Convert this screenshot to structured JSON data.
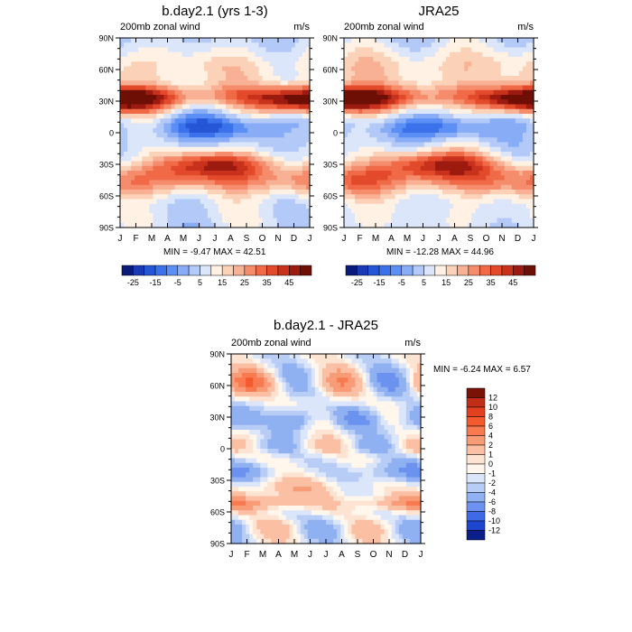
{
  "months": [
    "J",
    "F",
    "M",
    "A",
    "M",
    "J",
    "J",
    "A",
    "S",
    "O",
    "N",
    "D",
    "J"
  ],
  "lat_ticks": [
    "90N",
    "60N",
    "30N",
    "0",
    "30S",
    "60S",
    "90S"
  ],
  "panels": {
    "p1": {
      "title": "b.day2.1 (yrs 1-3)",
      "subtitle": "200mb zonal wind",
      "units": "m/s",
      "minmax": "MIN =  -9.47 MAX =  42.51"
    },
    "p2": {
      "title": "JRA25",
      "subtitle": "200mb zonal wind",
      "units": "m/s",
      "minmax": "MIN = -12.28 MAX = 44.96"
    },
    "p3": {
      "title": "b.day2.1 - JRA25",
      "subtitle": "200mb zonal wind",
      "units": "m/s",
      "minmax": "MIN =  -6.24 MAX =   6.57"
    }
  },
  "colorbar_main": {
    "labels": [
      "-25",
      "-15",
      "-5",
      "5",
      "15",
      "25",
      "35",
      "45"
    ],
    "colors": [
      "#0a1a7a",
      "#1a3ab5",
      "#2456d6",
      "#3b72ec",
      "#5b8ff5",
      "#88acf5",
      "#b3c9f7",
      "#dce6fb",
      "#fff1e3",
      "#fbd2b8",
      "#f8b194",
      "#f58d6c",
      "#f06a48",
      "#e34a2b",
      "#c8321c",
      "#9c1a0f",
      "#6e0f06"
    ]
  },
  "colorbar_diff": {
    "labels": [
      "12",
      "10",
      "8",
      "6",
      "4",
      "2",
      "1",
      "0",
      "-1",
      "-2",
      "-4",
      "-6",
      "-8",
      "-10",
      "-12"
    ],
    "colors": [
      "#7a1208",
      "#c22d18",
      "#e2401e",
      "#f55a2e",
      "#f77a50",
      "#f89c78",
      "#fbbfa3",
      "#fde3d2",
      "#fff6ec",
      "#dce6fb",
      "#b8cdf6",
      "#8fb0f1",
      "#6a92ee",
      "#3f6ae6",
      "#1f45cf",
      "#0b1f8a"
    ]
  },
  "chart_data": [
    {
      "type": "heatmap",
      "title": "b.day2.1 (yrs 1-3)",
      "subtitle": "200mb zonal wind",
      "units": "m/s",
      "x": [
        "J",
        "F",
        "M",
        "A",
        "M",
        "J",
        "J",
        "A",
        "S",
        "O",
        "N",
        "D",
        "J"
      ],
      "y": [
        "90N",
        "60N",
        "30N",
        "0",
        "30S",
        "60S",
        "90S"
      ],
      "min": -9.47,
      "max": 42.51,
      "colorbar_ticks": [
        -25,
        -15,
        -5,
        5,
        15,
        25,
        35,
        45
      ]
    },
    {
      "type": "heatmap",
      "title": "JRA25",
      "subtitle": "200mb zonal wind",
      "units": "m/s",
      "x": [
        "J",
        "F",
        "M",
        "A",
        "M",
        "J",
        "J",
        "A",
        "S",
        "O",
        "N",
        "D",
        "J"
      ],
      "y": [
        "90N",
        "60N",
        "30N",
        "0",
        "30S",
        "60S",
        "90S"
      ],
      "min": -12.28,
      "max": 44.96,
      "colorbar_ticks": [
        -25,
        -15,
        -5,
        5,
        15,
        25,
        35,
        45
      ]
    },
    {
      "type": "heatmap",
      "title": "b.day2.1 - JRA25",
      "subtitle": "200mb zonal wind",
      "units": "m/s",
      "x": [
        "J",
        "F",
        "M",
        "A",
        "M",
        "J",
        "J",
        "A",
        "S",
        "O",
        "N",
        "D",
        "J"
      ],
      "y": [
        "90N",
        "60N",
        "30N",
        "0",
        "30S",
        "60S",
        "90S"
      ],
      "min": -6.24,
      "max": 6.57,
      "colorbar_ticks": [
        12,
        10,
        8,
        6,
        4,
        2,
        1,
        0,
        -1,
        -2,
        -4,
        -6,
        -8,
        -10,
        -12
      ]
    }
  ]
}
